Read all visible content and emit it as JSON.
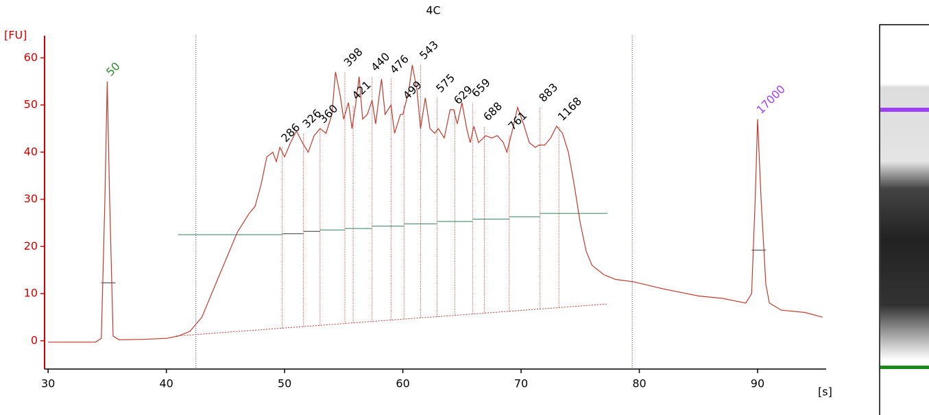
{
  "chart_data": {
    "type": "line",
    "title": "4C",
    "y_label": "[FU]",
    "x_label": "[s]",
    "color": "#c0392b",
    "xlim": [
      29.7,
      95.8
    ],
    "ylim": [
      -6,
      64.7
    ],
    "xticks": [
      30,
      40,
      50,
      60,
      70,
      80,
      90
    ],
    "yticks": [
      0,
      10,
      20,
      30,
      40,
      50,
      60
    ],
    "x": [
      30,
      34,
      34.5,
      34.8,
      35,
      35.2,
      35.5,
      36,
      38,
      40,
      41,
      42,
      43,
      43.5,
      44,
      44.5,
      45,
      45.5,
      46,
      46.5,
      47,
      47.5,
      48,
      48.5,
      49,
      49.3,
      49.6,
      50,
      50.5,
      51,
      51.5,
      52,
      52.5,
      53,
      53.5,
      54,
      54.3,
      54.7,
      55,
      55.4,
      55.7,
      56,
      56.3,
      56.6,
      57,
      57.4,
      57.7,
      58,
      58.2,
      58.5,
      59,
      59.3,
      59.8,
      60,
      60.5,
      60.8,
      61.2,
      61.5,
      61.9,
      62.3,
      62.7,
      63,
      63.5,
      64,
      64.3,
      64.6,
      65,
      65.4,
      65.7,
      66,
      66.4,
      67,
      67.5,
      68,
      68.5,
      68.8,
      69.3,
      69.7,
      70.2,
      70.7,
      71.2,
      71.5,
      72,
      72.5,
      73,
      73.5,
      74,
      74.5,
      75,
      75.5,
      76,
      77,
      78,
      79.5,
      82,
      85,
      87,
      88,
      89,
      89.5,
      89.8,
      90,
      90.3,
      90.7,
      91,
      92,
      94,
      95.5
    ],
    "values": [
      -0.3,
      -0.3,
      0.5,
      30,
      55,
      30,
      1,
      0.2,
      0.3,
      0.5,
      1,
      2,
      5,
      8,
      11,
      14,
      17,
      20,
      23,
      25,
      27,
      28.5,
      33,
      39,
      40,
      38,
      41,
      39,
      42,
      44.5,
      42,
      40,
      43.5,
      45,
      44,
      48,
      57,
      52,
      47,
      50.5,
      45,
      50,
      56,
      47,
      48,
      51,
      46,
      52,
      55.5,
      48,
      50,
      44,
      48,
      48,
      53,
      58.5,
      53,
      45,
      51.5,
      45,
      44,
      45,
      43,
      49,
      49,
      46,
      50.5,
      45,
      42,
      45.5,
      42,
      43.5,
      43,
      43.5,
      42,
      40,
      45,
      49.5,
      46,
      42,
      41,
      41.5,
      41.5,
      43,
      45.5,
      44,
      40,
      33,
      25,
      19,
      16,
      14,
      13,
      12.5,
      11,
      9.5,
      9,
      8.5,
      8,
      10,
      30,
      47,
      30,
      12,
      8,
      6.5,
      6,
      5
    ],
    "peaks": [
      {
        "size": 50,
        "x": 35,
        "y": 55,
        "color": "#2e8b2e"
      },
      {
        "size": 286,
        "x": 49.8,
        "y": 41
      },
      {
        "size": 326,
        "x": 51.6,
        "y": 44
      },
      {
        "size": 360,
        "x": 53,
        "y": 45
      },
      {
        "size": 398,
        "x": 55.1,
        "y": 57
      },
      {
        "size": 421,
        "x": 55.8,
        "y": 50
      },
      {
        "size": 440,
        "x": 57.4,
        "y": 56
      },
      {
        "size": 476,
        "x": 59,
        "y": 55.5
      },
      {
        "size": 499,
        "x": 60.1,
        "y": 50
      },
      {
        "size": 543,
        "x": 61.5,
        "y": 58.5
      },
      {
        "size": 575,
        "x": 62.9,
        "y": 51.5
      },
      {
        "size": 629,
        "x": 64.4,
        "y": 49
      },
      {
        "size": 659,
        "x": 65.9,
        "y": 50.5
      },
      {
        "size": 688,
        "x": 66.9,
        "y": 45.5
      },
      {
        "size": 761,
        "x": 69,
        "y": 43.5
      },
      {
        "size": 883,
        "x": 71.6,
        "y": 49.5
      },
      {
        "size": 1168,
        "x": 73.2,
        "y": 45.5
      },
      {
        "size": 17000,
        "x": 90,
        "y": 47,
        "color": "#a040ff"
      }
    ],
    "baseline": {
      "x": [
        40.8,
        77.3
      ],
      "y": [
        1,
        7.8
      ]
    },
    "region": [
      42.5,
      79.4
    ],
    "markers": [
      {
        "x0": 34.5,
        "x1": 35.7,
        "y": 12.3
      },
      {
        "x0": 41,
        "x1": 49.8,
        "y": 22.5
      },
      {
        "x0": 49.8,
        "x1": 51.6,
        "y": 22.7
      },
      {
        "x0": 51.6,
        "x1": 53,
        "y": 23.2
      },
      {
        "x0": 53,
        "x1": 55.1,
        "y": 23.5
      },
      {
        "x0": 55.1,
        "x1": 57.4,
        "y": 23.8
      },
      {
        "x0": 57.4,
        "x1": 60.1,
        "y": 24.3
      },
      {
        "x0": 60.1,
        "x1": 62.9,
        "y": 24.8
      },
      {
        "x0": 62.9,
        "x1": 65.9,
        "y": 25.3
      },
      {
        "x0": 65.9,
        "x1": 69,
        "y": 25.8
      },
      {
        "x0": 69,
        "x1": 71.6,
        "y": 26.3
      },
      {
        "x0": 71.6,
        "x1": 77.3,
        "y": 27
      },
      {
        "x0": 89.5,
        "x1": 90.7,
        "y": 19.2
      }
    ]
  }
}
